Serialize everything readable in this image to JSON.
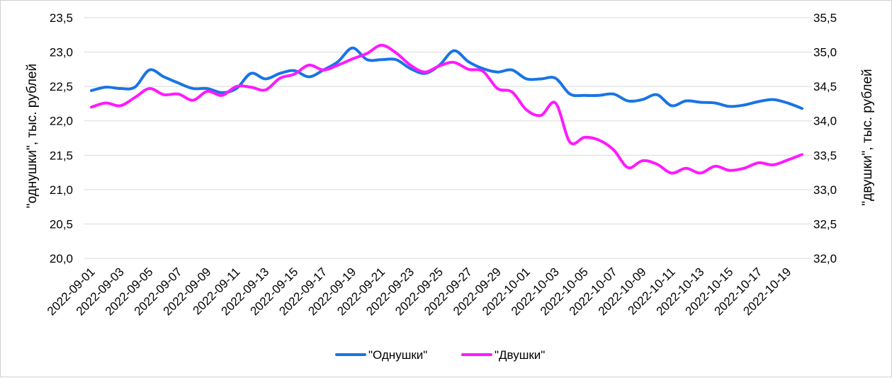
{
  "chart_data": {
    "type": "line",
    "title": "",
    "ylabel_left": "\"однушки\", тыс. рублей",
    "ylabel_right": "\"двушки\", тыс. рублей",
    "ylim_left": [
      20.0,
      23.5
    ],
    "ylim_right": [
      32.0,
      35.5
    ],
    "yticks_left": [
      "20,0",
      "20,5",
      "21,0",
      "21,5",
      "22,0",
      "22,5",
      "23,0",
      "23,5"
    ],
    "yticks_right": [
      "32,0",
      "32,5",
      "33,0",
      "33,5",
      "34,0",
      "34,5",
      "35,0",
      "35,5"
    ],
    "x": [
      "2022-09-01",
      "2022-09-02",
      "2022-09-03",
      "2022-09-04",
      "2022-09-05",
      "2022-09-06",
      "2022-09-07",
      "2022-09-08",
      "2022-09-09",
      "2022-09-10",
      "2022-09-11",
      "2022-09-12",
      "2022-09-13",
      "2022-09-14",
      "2022-09-15",
      "2022-09-16",
      "2022-09-17",
      "2022-09-18",
      "2022-09-19",
      "2022-09-20",
      "2022-09-21",
      "2022-09-22",
      "2022-09-23",
      "2022-09-24",
      "2022-09-25",
      "2022-09-26",
      "2022-09-27",
      "2022-09-28",
      "2022-09-29",
      "2022-09-30",
      "2022-10-01",
      "2022-10-02",
      "2022-10-03",
      "2022-10-04",
      "2022-10-05",
      "2022-10-06",
      "2022-10-07",
      "2022-10-08",
      "2022-10-09",
      "2022-10-10",
      "2022-10-11",
      "2022-10-12",
      "2022-10-13",
      "2022-10-14",
      "2022-10-15",
      "2022-10-16",
      "2022-10-17",
      "2022-10-18",
      "2022-10-19",
      "2022-10-20"
    ],
    "xtick_labels": [
      "2022-09-01",
      "2022-09-03",
      "2022-09-05",
      "2022-09-07",
      "2022-09-09",
      "2022-09-11",
      "2022-09-13",
      "2022-09-15",
      "2022-09-17",
      "2022-09-19",
      "2022-09-21",
      "2022-09-23",
      "2022-09-25",
      "2022-09-27",
      "2022-09-29",
      "2022-10-01",
      "2022-10-03",
      "2022-10-05",
      "2022-10-07",
      "2022-10-09",
      "2022-10-11",
      "2022-10-13",
      "2022-10-15",
      "2022-10-17",
      "2022-10-19"
    ],
    "grid": true,
    "legend": "bottom",
    "series": [
      {
        "name": "\"Однушки\"",
        "axis": "left",
        "color": "#1874e6",
        "values": [
          22.44,
          22.49,
          22.47,
          22.49,
          22.74,
          22.64,
          22.55,
          22.47,
          22.47,
          22.41,
          22.47,
          22.69,
          22.61,
          22.69,
          22.73,
          22.64,
          22.74,
          22.86,
          23.06,
          22.89,
          22.89,
          22.89,
          22.76,
          22.69,
          22.81,
          23.02,
          22.86,
          22.76,
          22.71,
          22.74,
          22.61,
          22.61,
          22.62,
          22.39,
          22.37,
          22.37,
          22.39,
          22.29,
          22.31,
          22.38,
          22.22,
          22.29,
          22.27,
          22.26,
          22.21,
          22.23,
          22.28,
          22.31,
          22.26,
          22.18
        ]
      },
      {
        "name": "\"Двушки\"",
        "axis": "right",
        "color": "#ff19ff",
        "values": [
          34.2,
          34.26,
          34.22,
          34.34,
          34.47,
          34.38,
          34.39,
          34.3,
          34.43,
          34.37,
          34.5,
          34.49,
          34.45,
          34.62,
          34.68,
          34.81,
          34.74,
          34.81,
          34.9,
          34.98,
          35.1,
          34.99,
          34.81,
          34.71,
          34.8,
          34.85,
          34.75,
          34.72,
          34.47,
          34.42,
          34.16,
          34.08,
          34.26,
          33.69,
          33.76,
          33.72,
          33.58,
          33.32,
          33.42,
          33.37,
          33.24,
          33.31,
          33.24,
          33.34,
          33.28,
          33.31,
          33.39,
          33.36,
          33.43,
          33.51
        ]
      }
    ]
  }
}
